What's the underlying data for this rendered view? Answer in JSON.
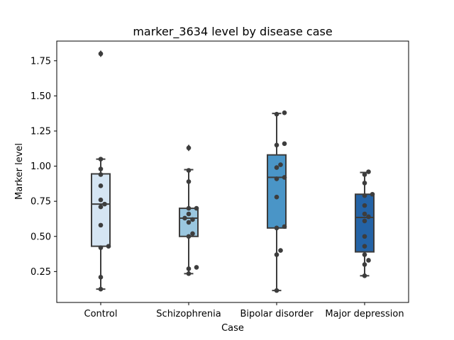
{
  "chart_data": {
    "type": "box",
    "title": "marker_3634 level by disease case",
    "xlabel": "Case",
    "ylabel": "Marker level",
    "ylim": [
      0.03,
      1.89
    ],
    "yticks": [
      "0.25",
      "0.50",
      "0.75",
      "1.00",
      "1.25",
      "1.50",
      "1.75"
    ],
    "grid": false,
    "categories": [
      "Control",
      "Schizophrenia",
      "Bipolar disorder",
      "Major depression"
    ],
    "colors": [
      "#d5e5f3",
      "#9ac7e0",
      "#4a95c7",
      "#2463a6"
    ],
    "boxes": [
      {
        "category": "Control",
        "q1": 0.43,
        "median": 0.73,
        "q3": 0.945,
        "whisker_low": 0.125,
        "whisker_high": 1.05,
        "outliers": [
          1.8
        ]
      },
      {
        "category": "Schizophrenia",
        "q1": 0.5,
        "median": 0.63,
        "q3": 0.7,
        "whisker_low": 0.235,
        "whisker_high": 0.975,
        "outliers": [
          1.13
        ]
      },
      {
        "category": "Bipolar disorder",
        "q1": 0.56,
        "median": 0.92,
        "q3": 1.08,
        "whisker_low": 0.115,
        "whisker_high": 1.375,
        "outliers": []
      },
      {
        "category": "Major depression",
        "q1": 0.39,
        "median": 0.635,
        "q3": 0.8,
        "whisker_low": 0.22,
        "whisker_high": 0.955,
        "outliers": []
      }
    ],
    "points": [
      {
        "category": "Control",
        "values": [
          1.8,
          1.05,
          0.98,
          0.94,
          0.86,
          0.76,
          0.73,
          0.71,
          0.58,
          0.43,
          0.42,
          0.21,
          0.125
        ]
      },
      {
        "category": "Schizophrenia",
        "values": [
          1.13,
          0.97,
          0.89,
          0.7,
          0.7,
          0.66,
          0.63,
          0.62,
          0.6,
          0.52,
          0.5,
          0.28,
          0.27,
          0.235
        ]
      },
      {
        "category": "Bipolar disorder",
        "values": [
          1.38,
          1.37,
          1.16,
          1.15,
          1.01,
          0.99,
          0.92,
          0.91,
          0.78,
          0.57,
          0.56,
          0.4,
          0.37,
          0.115
        ]
      },
      {
        "category": "Major depression",
        "values": [
          0.96,
          0.94,
          0.88,
          0.8,
          0.79,
          0.72,
          0.66,
          0.64,
          0.61,
          0.5,
          0.43,
          0.37,
          0.33,
          0.3,
          0.22
        ]
      }
    ]
  }
}
